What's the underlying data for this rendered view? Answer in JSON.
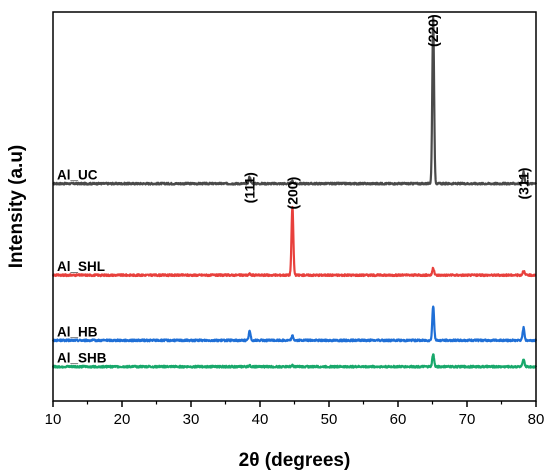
{
  "chart_data": {
    "type": "line",
    "xlabel": "2θ (degrees)",
    "ylabel": "Intensity (a.u)",
    "xlim": [
      10,
      80
    ],
    "x_ticks": [
      10,
      20,
      30,
      40,
      50,
      60,
      70,
      80
    ],
    "grid": false,
    "y_ticks_shown": false,
    "series": [
      {
        "name": "Al_UC",
        "color": "#4a4a4a",
        "baseline": 50,
        "peaks": [
          {
            "x": 38.5,
            "height": 6
          },
          {
            "x": 44.7,
            "height": 2
          },
          {
            "x": 65.1,
            "height": 145
          },
          {
            "x": 78.2,
            "height": 10
          }
        ]
      },
      {
        "name": "Al_SHL",
        "color": "#e8403c",
        "baseline": -30,
        "peaks": [
          {
            "x": 38.5,
            "height": 1
          },
          {
            "x": 44.7,
            "height": 60
          },
          {
            "x": 65.1,
            "height": 6
          },
          {
            "x": 78.2,
            "height": 4
          }
        ]
      },
      {
        "name": "Al_HB",
        "color": "#1f6fd6",
        "baseline": -87,
        "peaks": [
          {
            "x": 38.5,
            "height": 8
          },
          {
            "x": 44.7,
            "height": 4
          },
          {
            "x": 65.1,
            "height": 30
          },
          {
            "x": 78.2,
            "height": 11
          }
        ]
      },
      {
        "name": "Al_SHB",
        "color": "#18a86b",
        "baseline": -110,
        "peaks": [
          {
            "x": 38.5,
            "height": 1
          },
          {
            "x": 44.7,
            "height": 1
          },
          {
            "x": 65.1,
            "height": 11
          },
          {
            "x": 78.2,
            "height": 6
          }
        ]
      }
    ],
    "ylim": [
      -140,
      200
    ],
    "annotations": [
      {
        "text": "(111)",
        "x": 38.5,
        "y": 60
      },
      {
        "text": "(200)",
        "x": 44.7,
        "y": 56
      },
      {
        "text": "(220)",
        "x": 65.1,
        "y": 198
      },
      {
        "text": "(311)",
        "x": 78.2,
        "y": 64
      }
    ]
  }
}
